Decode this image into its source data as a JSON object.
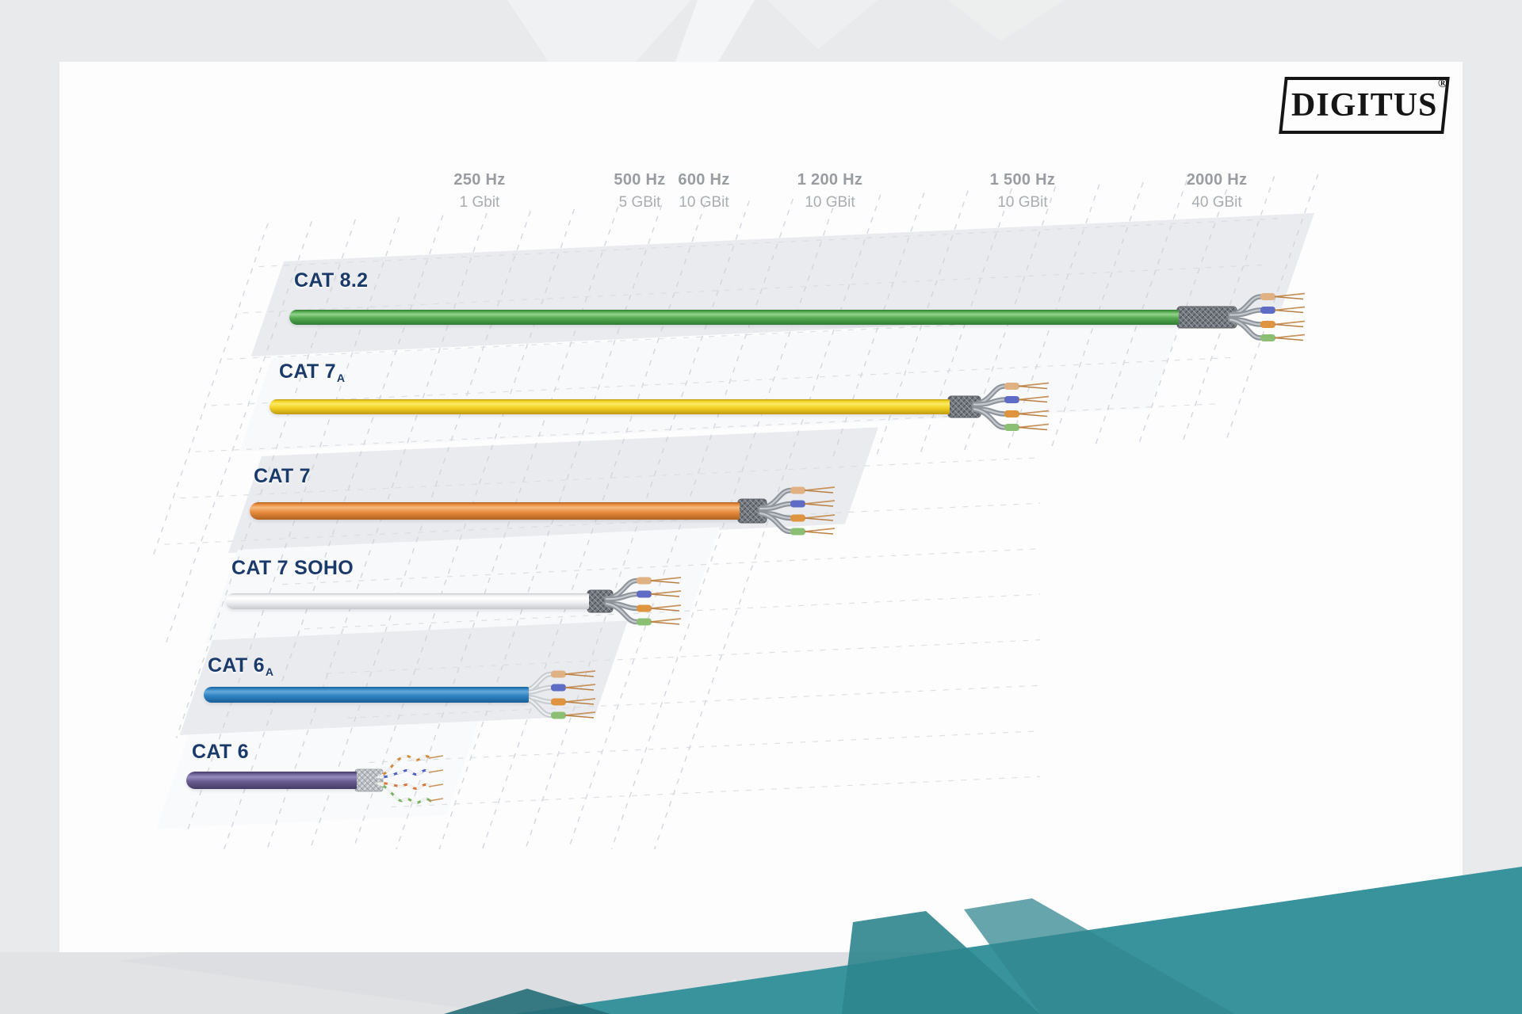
{
  "brand": {
    "logo_text": "DIGITUS",
    "registered_mark": "®"
  },
  "axis": {
    "ticks": [
      {
        "hz": "250 Hz",
        "rate": "1 Gbit"
      },
      {
        "hz": "500 Hz",
        "rate": "5 GBit"
      },
      {
        "hz": "600 Hz",
        "rate": "10 GBit"
      },
      {
        "hz": "1 200 Hz",
        "rate": "10 GBit"
      },
      {
        "hz": "1 500 Hz",
        "rate": "10 GBit"
      },
      {
        "hz": "2000 Hz",
        "rate": "40 GBit"
      }
    ]
  },
  "rows": [
    {
      "id": "cat-8-2",
      "label": "CAT 8.2",
      "sub": "",
      "jacket": "#55a94f",
      "jacket_light": "#93d38c",
      "jacket_dark": "#2e7c33",
      "end": "shielded"
    },
    {
      "id": "cat-7a",
      "label": "CAT 7",
      "sub": "A",
      "jacket": "#f3d325",
      "jacket_light": "#fbea67",
      "jacket_dark": "#c09a10",
      "end": "shielded"
    },
    {
      "id": "cat-7",
      "label": "CAT 7",
      "sub": "",
      "jacket": "#e98d3f",
      "jacket_light": "#f6b97e",
      "jacket_dark": "#b0621e",
      "end": "shielded"
    },
    {
      "id": "cat-7-soho",
      "label": "CAT 7 SOHO",
      "sub": "",
      "jacket": "#f1f1f3",
      "jacket_light": "#ffffff",
      "jacket_dark": "#c7c9cd",
      "end": "shielded"
    },
    {
      "id": "cat-6a",
      "label": "CAT 6",
      "sub": "A",
      "jacket": "#2f84c4",
      "jacket_light": "#66aad9",
      "jacket_dark": "#1a5e95",
      "end": "utp"
    },
    {
      "id": "cat-6",
      "label": "CAT 6",
      "sub": "",
      "jacket": "#6a5e93",
      "jacket_light": "#988dbe",
      "jacket_dark": "#443a65",
      "end": "cat6"
    }
  ],
  "chart_data": {
    "type": "bar",
    "orientation": "horizontal",
    "title": "",
    "categories": [
      "CAT 8.2",
      "CAT 7A",
      "CAT 7",
      "CAT 7 SOHO",
      "CAT 6A",
      "CAT 6"
    ],
    "series": [
      {
        "name": "max_frequency_hz",
        "values": [
          2000,
          1500,
          1200,
          600,
          500,
          250
        ]
      },
      {
        "name": "max_bandwidth",
        "values": [
          "40 GBit",
          "10 GBit",
          "10 GBit",
          "10 GBit",
          "5 GBit",
          "1 Gbit"
        ]
      }
    ],
    "x_axis": {
      "tick_labels": [
        "250 Hz",
        "500 Hz",
        "600 Hz",
        "1 200 Hz",
        "1 500 Hz",
        "2000 Hz"
      ],
      "tick_sublabels": [
        "1 Gbit",
        "5 GBit",
        "10 GBit",
        "10 GBit",
        "10 GBit",
        "40 GBit"
      ]
    },
    "bar_colors": [
      "#55a94f",
      "#f3d325",
      "#e98d3f",
      "#f1f1f3",
      "#2f84c4",
      "#6a5e93"
    ],
    "legend": false,
    "grid": "dashed-skewed-plane"
  },
  "palette": {
    "label_navy": "#1a3a69",
    "axis_gray": "#999da1",
    "band_gray": "#e9ebef",
    "teal_main": "#38939c",
    "teal_dark": "#2e858e",
    "background": "#e9eaeb"
  }
}
